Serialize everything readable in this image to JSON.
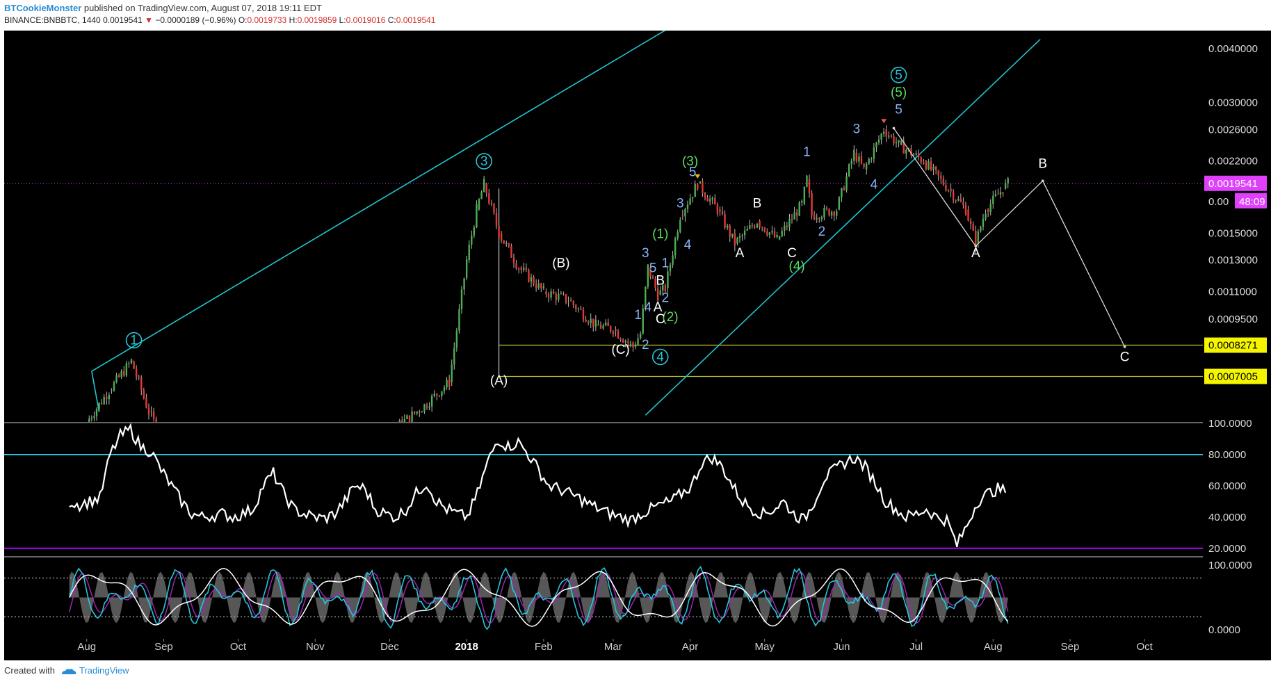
{
  "header": {
    "author": "BTCookieMonster",
    "published": "published on TradingView.com, August 07, 2018 19:11 EDT",
    "symbol": "BINANCE:BNBBTC, 1440",
    "last": "0.0019541",
    "change": "−0.0000189 (−0.96%)",
    "o_label": "O:",
    "o": "0.0019733",
    "h_label": "H:",
    "h": "0.0019859",
    "l_label": "L:",
    "l": "0.0019016",
    "c_label": "C:",
    "c": "0.0019541"
  },
  "footer": {
    "created_with": "Created with",
    "brand": "TradingView"
  },
  "colors": {
    "background": "#000000",
    "up": "#4caf50",
    "down": "#e53935",
    "trendline": "#1fc6d0",
    "hline_yellow": "#c7c733",
    "rsi_line": "#ffffff",
    "rsi_band_high": "#26c6da",
    "rsi_band_low": "#aa00ff",
    "stoch_k": "#26c6da",
    "stoch_d": "#9c27b0",
    "stoch_slow": "#ffffff",
    "price_tag": "#e040fb"
  },
  "chart_data": [
    {
      "type": "candlestick",
      "scale": "log",
      "ylim": [
        0.00055,
        0.0044
      ],
      "price_ticks": [
        "0.0040000",
        "0.0030000",
        "0.0026000",
        "0.0022000",
        "0.0015000",
        "0.0013000",
        "0.0011000",
        "0.0009500"
      ],
      "x_ticks": [
        "Aug",
        "Sep",
        "Oct",
        "Nov",
        "Dec",
        "2018",
        "Feb",
        "Mar",
        "Apr",
        "May",
        "Jun",
        "Jul",
        "Aug",
        "Sep",
        "Oct"
      ],
      "bold_x_tick": "2018",
      "last_price_tag": "0.0019541",
      "countdown_tag": "48:09",
      "countdown_prefix": "0.00",
      "horizontal_levels": [
        {
          "value": "0.0008271",
          "price": 0.0008271
        },
        {
          "value": "0.0007005",
          "price": 0.0007005
        }
      ],
      "ohlc_path": [
        {
          "date": "2017-08-01",
          "price": 0.00055
        },
        {
          "date": "2017-08-10",
          "price": 0.00065
        },
        {
          "date": "2017-08-19",
          "price": 0.00076
        },
        {
          "date": "2017-08-26",
          "price": 0.00058
        },
        {
          "date": "2017-09-01",
          "price": 0.0005
        },
        {
          "date": "2017-12-01",
          "price": 0.00052
        },
        {
          "date": "2017-12-15",
          "price": 0.0006
        },
        {
          "date": "2017-12-25",
          "price": 0.00068
        },
        {
          "date": "2018-01-01",
          "price": 0.0013
        },
        {
          "date": "2018-01-05",
          "price": 0.0017
        },
        {
          "date": "2018-01-08",
          "price": 0.00195
        },
        {
          "date": "2018-01-14",
          "price": 0.0015
        },
        {
          "date": "2018-01-22",
          "price": 0.00125
        },
        {
          "date": "2018-02-01",
          "price": 0.0011
        },
        {
          "date": "2018-02-11",
          "price": 0.00105
        },
        {
          "date": "2018-02-22",
          "price": 0.00092
        },
        {
          "date": "2018-03-01",
          "price": 0.0009
        },
        {
          "date": "2018-03-09",
          "price": 0.00082
        },
        {
          "date": "2018-03-12",
          "price": 0.00088
        },
        {
          "date": "2018-03-15",
          "price": 0.00125
        },
        {
          "date": "2018-03-19",
          "price": 0.00108
        },
        {
          "date": "2018-03-22",
          "price": 0.00112
        },
        {
          "date": "2018-03-28",
          "price": 0.00165
        },
        {
          "date": "2018-04-04",
          "price": 0.00195
        },
        {
          "date": "2018-04-12",
          "price": 0.0017
        },
        {
          "date": "2018-04-19",
          "price": 0.00142
        },
        {
          "date": "2018-04-28",
          "price": 0.0016
        },
        {
          "date": "2018-05-06",
          "price": 0.00145
        },
        {
          "date": "2018-05-16",
          "price": 0.00175
        },
        {
          "date": "2018-05-18",
          "price": 0.002
        },
        {
          "date": "2018-05-20",
          "price": 0.00165
        },
        {
          "date": "2018-05-30",
          "price": 0.0017
        },
        {
          "date": "2018-06-06",
          "price": 0.0023
        },
        {
          "date": "2018-06-10",
          "price": 0.0021
        },
        {
          "date": "2018-06-18",
          "price": 0.0026
        },
        {
          "date": "2018-06-24",
          "price": 0.0024
        },
        {
          "date": "2018-07-04",
          "price": 0.0022
        },
        {
          "date": "2018-07-14",
          "price": 0.0019
        },
        {
          "date": "2018-07-21",
          "price": 0.0017
        },
        {
          "date": "2018-07-25",
          "price": 0.00142
        },
        {
          "date": "2018-07-29",
          "price": 0.0017
        },
        {
          "date": "2018-08-05",
          "price": 0.0019
        },
        {
          "date": "2018-08-07",
          "price": 0.0019541
        }
      ],
      "trendlines": [
        {
          "x1": "2017-08-03",
          "p1": 0.00072,
          "x2": "2018-04-26",
          "p2": 0.0058
        },
        {
          "x1": "2018-03-14",
          "p1": 0.00057,
          "x2": "2018-08-20",
          "p2": 0.0042
        },
        {
          "x1": "2017-08-03",
          "p1": 0.00072,
          "x2": "2017-08-06",
          "p2": 0.00058
        }
      ],
      "projection": {
        "points": [
          {
            "date": "2018-06-22",
            "price": 0.00262
          },
          {
            "date": "2018-07-25",
            "price": 0.0014
          },
          {
            "date": "2018-08-21",
            "price": 0.00198
          },
          {
            "date": "2018-09-23",
            "price": 0.00082
          }
        ]
      },
      "vertical_lines": [
        {
          "date": "2018-01-14",
          "from": 0.0019,
          "to": 0.0007005
        }
      ],
      "wave_labels": [
        {
          "text": "1",
          "date": "2017-08-20",
          "price": 0.00083,
          "color": "#26c6da",
          "circled": true
        },
        {
          "text": "3",
          "date": "2018-01-08",
          "price": 0.00215,
          "color": "#26c6da",
          "circled": true
        },
        {
          "text": "4",
          "date": "2018-03-20",
          "price": 0.00076,
          "color": "#26c6da",
          "circled": true
        },
        {
          "text": "5",
          "date": "2018-06-24",
          "price": 0.0034,
          "color": "#26c6da",
          "circled": true
        },
        {
          "text": "(5)",
          "date": "2018-06-24",
          "price": 0.0031,
          "color": "#5cdd5c"
        },
        {
          "text": "(3)",
          "date": "2018-04-01",
          "price": 0.00215,
          "color": "#5cdd5c"
        },
        {
          "text": "(1)",
          "date": "2018-03-20",
          "price": 0.00146,
          "color": "#5cdd5c"
        },
        {
          "text": "(2)",
          "date": "2018-03-24",
          "price": 0.00094,
          "color": "#5cdd5c"
        },
        {
          "text": "(4)",
          "date": "2018-05-14",
          "price": 0.00123,
          "color": "#5cdd5c"
        },
        {
          "text": "(A)",
          "date": "2018-01-14",
          "price": 0.00067,
          "color": "#ffffff"
        },
        {
          "text": "(B)",
          "date": "2018-02-08",
          "price": 0.00125,
          "color": "#ffffff"
        },
        {
          "text": "(C)",
          "date": "2018-03-04",
          "price": 0.00079,
          "color": "#ffffff"
        },
        {
          "text": "1",
          "date": "2018-03-11",
          "price": 0.00095,
          "color": "#8ab4f8"
        },
        {
          "text": "2",
          "date": "2018-03-14",
          "price": 0.00081,
          "color": "#8ab4f8"
        },
        {
          "text": "3",
          "date": "2018-03-14",
          "price": 0.00132,
          "color": "#8ab4f8"
        },
        {
          "text": "4",
          "date": "2018-03-15",
          "price": 0.00099,
          "color": "#8ab4f8"
        },
        {
          "text": "5",
          "date": "2018-03-17",
          "price": 0.00122,
          "color": "#8ab4f8"
        },
        {
          "text": "A",
          "date": "2018-03-19",
          "price": 0.00099,
          "color": "#ffffff"
        },
        {
          "text": "B",
          "date": "2018-03-20",
          "price": 0.00114,
          "color": "#ffffff"
        },
        {
          "text": "C",
          "date": "2018-03-20",
          "price": 0.00093,
          "color": "#ffffff"
        },
        {
          "text": "1",
          "date": "2018-03-22",
          "price": 0.00125,
          "color": "#8ab4f8"
        },
        {
          "text": "2",
          "date": "2018-03-22",
          "price": 0.00104,
          "color": "#8ab4f8"
        },
        {
          "text": "3",
          "date": "2018-03-28",
          "price": 0.00172,
          "color": "#8ab4f8"
        },
        {
          "text": "4",
          "date": "2018-03-31",
          "price": 0.00138,
          "color": "#8ab4f8"
        },
        {
          "text": "5",
          "date": "2018-04-02",
          "price": 0.00203,
          "color": "#8ab4f8"
        },
        {
          "text": "A",
          "date": "2018-04-21",
          "price": 0.00132,
          "color": "#ffffff"
        },
        {
          "text": "B",
          "date": "2018-04-28",
          "price": 0.00172,
          "color": "#ffffff"
        },
        {
          "text": "C",
          "date": "2018-05-12",
          "price": 0.00132,
          "color": "#ffffff"
        },
        {
          "text": "1",
          "date": "2018-05-18",
          "price": 0.00226,
          "color": "#8ab4f8"
        },
        {
          "text": "2",
          "date": "2018-05-24",
          "price": 0.00148,
          "color": "#8ab4f8"
        },
        {
          "text": "3",
          "date": "2018-06-07",
          "price": 0.00255,
          "color": "#8ab4f8"
        },
        {
          "text": "4",
          "date": "2018-06-14",
          "price": 0.0019,
          "color": "#8ab4f8"
        },
        {
          "text": "5",
          "date": "2018-06-24",
          "price": 0.00283,
          "color": "#8ab4f8"
        },
        {
          "text": "A",
          "date": "2018-07-25",
          "price": 0.00132,
          "color": "#ffffff"
        },
        {
          "text": "B",
          "date": "2018-08-21",
          "price": 0.00212,
          "color": "#ffffff"
        },
        {
          "text": "C",
          "date": "2018-09-23",
          "price": 0.00076,
          "color": "#ffffff"
        }
      ]
    },
    {
      "type": "line",
      "name": "RSI",
      "ylim": [
        15,
        100
      ],
      "y_ticks": [
        "100.0000",
        "80.0000",
        "60.0000",
        "40.0000",
        "20.0000"
      ],
      "bands": [
        80,
        20
      ],
      "series": [
        {
          "values": [
            50,
            48,
            50,
            52,
            80,
            92,
            96,
            85,
            82,
            70,
            60,
            50,
            42,
            40,
            41,
            42,
            40,
            42,
            45,
            60,
            68,
            55,
            45,
            42,
            40,
            39,
            42,
            50,
            60,
            58,
            45,
            42,
            40,
            45,
            55,
            62,
            50,
            45,
            42,
            40,
            55,
            75,
            90,
            85,
            88,
            80,
            70,
            60,
            58,
            55,
            52,
            48,
            45,
            42,
            40,
            38,
            42,
            45,
            48,
            50,
            55,
            60,
            75,
            78,
            72,
            60,
            50,
            45,
            42,
            45,
            50,
            42,
            38,
            50,
            65,
            70,
            75,
            78,
            72,
            62,
            50,
            45,
            40,
            42,
            45,
            40,
            38,
            22,
            35,
            50,
            55,
            58,
            56
          ]
        }
      ],
      "series_start": "2017-07-25",
      "series_end": "2018-08-07"
    },
    {
      "type": "line",
      "name": "Stochastic RSI",
      "ylim": [
        -12,
        112
      ],
      "y_ticks": [
        "100.0000",
        "0.0000"
      ],
      "bands": [
        80,
        20
      ],
      "series_start": "2017-07-25",
      "series_end": "2018-08-07"
    }
  ]
}
